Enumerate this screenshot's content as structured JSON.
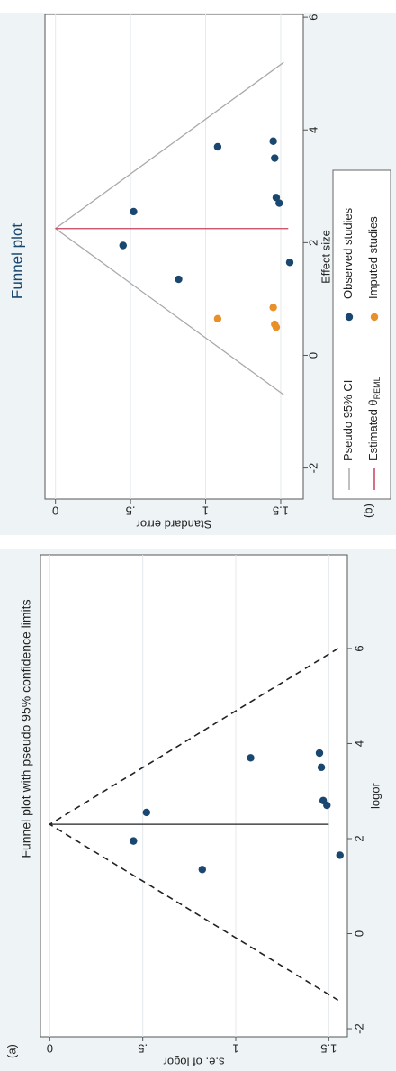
{
  "chart_data": [
    {
      "type": "scatter",
      "panel": "(a)",
      "title": "Funnel plot with pseudo 95% confidence limits",
      "x_label": "logor",
      "y_label": "s.e. of logor",
      "xlim": [
        -2.17,
        7.97
      ],
      "ylim": [
        -0.05,
        1.6
      ],
      "xticks": [
        -2,
        0,
        2,
        4,
        6
      ],
      "yticks": [
        0,
        {
          "value": 0.5,
          "label": ".5"
        },
        1,
        1.5
      ],
      "grid": true,
      "series": [
        {
          "color": "#1a476f",
          "x": [
            1.95,
            2.55,
            1.35,
            3.7,
            3.8,
            3.5,
            2.8,
            2.7,
            1.65
          ],
          "values": [
            0.45,
            0.52,
            0.82,
            1.08,
            1.45,
            1.46,
            1.47,
            1.49,
            1.56
          ]
        }
      ],
      "lines": [
        {
          "color": "#222",
          "dash": true,
          "x": [
            6.0,
            2.3,
            -1.4
          ],
          "y": [
            1.55,
            0,
            1.55
          ]
        },
        {
          "color": "#222",
          "dash": false,
          "x": [
            2.3,
            2.3
          ],
          "y": [
            0,
            1.5
          ]
        }
      ]
    },
    {
      "type": "scatter",
      "panel": "(b)",
      "title": "Funnel plot",
      "x_label": "Effect size",
      "y_label": "Standard error",
      "xlim": [
        -2.55,
        6.05
      ],
      "ylim": [
        -0.07,
        1.65
      ],
      "xticks": [
        -2,
        0,
        2,
        4,
        6
      ],
      "yticks": [
        0,
        {
          "value": 0.5,
          "label": ".5"
        },
        1,
        1.5
      ],
      "grid": true,
      "series": [
        {
          "name": "Observed studies",
          "color": "#1a476f",
          "x": [
            1.95,
            2.55,
            1.35,
            3.7,
            3.8,
            3.5,
            2.8,
            2.7,
            1.65
          ],
          "values": [
            0.45,
            0.52,
            0.82,
            1.08,
            1.45,
            1.46,
            1.47,
            1.49,
            1.56
          ]
        },
        {
          "name": "Imputed studies",
          "color": "#e8902a",
          "x": [
            0.65,
            0.85,
            0.55,
            0.5
          ],
          "values": [
            1.08,
            1.45,
            1.46,
            1.47
          ]
        }
      ],
      "lines": [
        {
          "name": "Pseudo 95% CI",
          "color": "#aaaaaa",
          "dash": false,
          "x": [
            5.2,
            2.25,
            -0.7
          ],
          "y": [
            1.52,
            0,
            1.52
          ]
        },
        {
          "name": "Estimated θ",
          "name_sub": "REML",
          "color": "#c8405a",
          "dash": false,
          "x": [
            2.25,
            2.25
          ],
          "y": [
            0,
            1.55
          ]
        }
      ]
    }
  ]
}
